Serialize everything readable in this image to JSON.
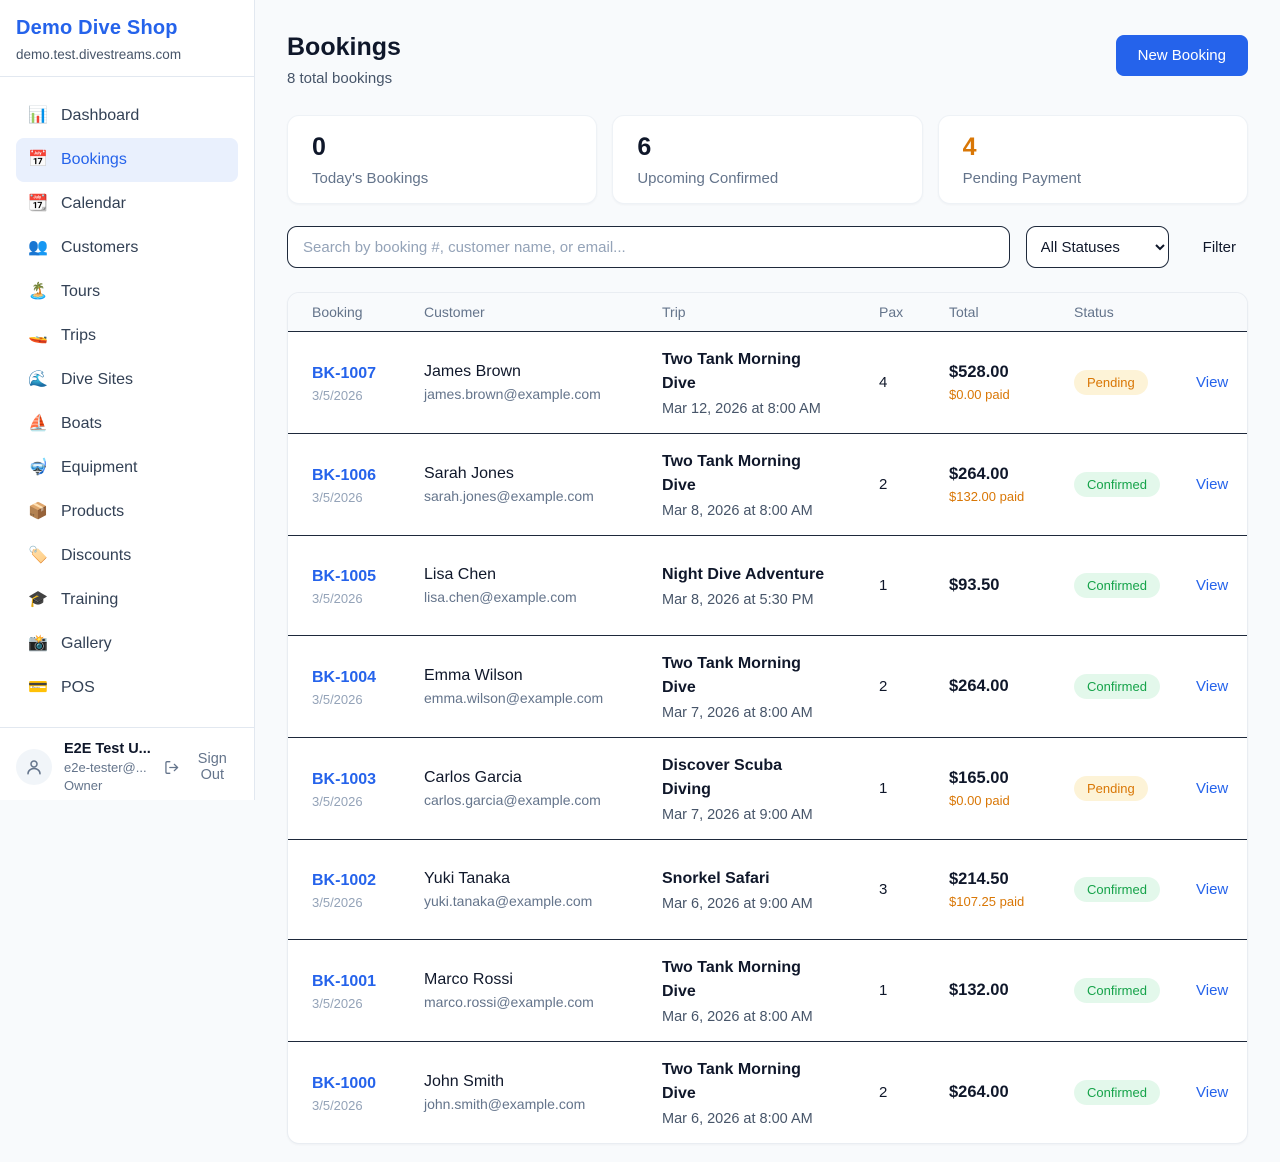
{
  "sidebar": {
    "brand": {
      "name": "Demo Dive Shop",
      "domain": "demo.test.divestreams.com"
    },
    "nav": [
      {
        "label": "Dashboard",
        "icon": "bar-chart-icon",
        "glyph": "📊",
        "active": false
      },
      {
        "label": "Bookings",
        "icon": "calendar-icon",
        "glyph": "📅",
        "active": true
      },
      {
        "label": "Calendar",
        "icon": "tear-off-calendar-icon",
        "glyph": "📆",
        "active": false
      },
      {
        "label": "Customers",
        "icon": "people-icon",
        "glyph": "👥",
        "active": false
      },
      {
        "label": "Tours",
        "icon": "desert-island-icon",
        "glyph": "🏝️",
        "active": false
      },
      {
        "label": "Trips",
        "icon": "speedboat-icon",
        "glyph": "🚤",
        "active": false
      },
      {
        "label": "Dive Sites",
        "icon": "wave-icon",
        "glyph": "🌊",
        "active": false
      },
      {
        "label": "Boats",
        "icon": "sailboat-icon",
        "glyph": "⛵",
        "active": false
      },
      {
        "label": "Equipment",
        "icon": "diving-mask-icon",
        "glyph": "🤿",
        "active": false
      },
      {
        "label": "Products",
        "icon": "package-icon",
        "glyph": "📦",
        "active": false
      },
      {
        "label": "Discounts",
        "icon": "tag-icon",
        "glyph": "🏷️",
        "active": false
      },
      {
        "label": "Training",
        "icon": "graduation-cap-icon",
        "glyph": "🎓",
        "active": false
      },
      {
        "label": "Gallery",
        "icon": "camera-flash-icon",
        "glyph": "📸",
        "active": false
      },
      {
        "label": "POS",
        "icon": "credit-card-icon",
        "glyph": "💳",
        "active": false
      }
    ],
    "user": {
      "name": "E2E Test U...",
      "email": "e2e-tester@...",
      "role": "Owner",
      "sign_out_label": "Sign Out"
    }
  },
  "header": {
    "title": "Bookings",
    "subtitle": "8 total bookings",
    "new_booking_label": "New Booking"
  },
  "stats": [
    {
      "value": "0",
      "label": "Today's Bookings",
      "value_color": "#0f172a"
    },
    {
      "value": "6",
      "label": "Upcoming Confirmed",
      "value_color": "#0f172a"
    },
    {
      "value": "4",
      "label": "Pending Payment",
      "value_color": "#d97706"
    }
  ],
  "controls": {
    "search_placeholder": "Search by booking #, customer name, or email...",
    "status_filter_value": "All Statuses",
    "filter_label": "Filter"
  },
  "table": {
    "columns": [
      "Booking",
      "Customer",
      "Trip",
      "Pax",
      "Total",
      "Status"
    ],
    "view_label": "View",
    "status_styles": {
      "Pending": {
        "bg": "#fdf3d7",
        "text": "#d97706"
      },
      "Confirmed": {
        "bg": "#e3f8eb",
        "text": "#16a34a"
      }
    },
    "rows": [
      {
        "id": "BK-1007",
        "date": "3/5/2026",
        "customer": "James Brown",
        "email": "james.brown@example.com",
        "trip": "Two Tank Morning Dive",
        "trip_datetime": "Mar 12, 2026 at 8:00 AM",
        "pax": "4",
        "total": "$528.00",
        "paid": "$0.00 paid",
        "status": "Pending"
      },
      {
        "id": "BK-1006",
        "date": "3/5/2026",
        "customer": "Sarah Jones",
        "email": "sarah.jones@example.com",
        "trip": "Two Tank Morning Dive",
        "trip_datetime": "Mar 8, 2026 at 8:00 AM",
        "pax": "2",
        "total": "$264.00",
        "paid": "$132.00 paid",
        "status": "Confirmed"
      },
      {
        "id": "BK-1005",
        "date": "3/5/2026",
        "customer": "Lisa Chen",
        "email": "lisa.chen@example.com",
        "trip": "Night Dive Adventure",
        "trip_datetime": "Mar 8, 2026 at 5:30 PM",
        "pax": "1",
        "total": "$93.50",
        "paid": null,
        "status": "Confirmed"
      },
      {
        "id": "BK-1004",
        "date": "3/5/2026",
        "customer": "Emma Wilson",
        "email": "emma.wilson@example.com",
        "trip": "Two Tank Morning Dive",
        "trip_datetime": "Mar 7, 2026 at 8:00 AM",
        "pax": "2",
        "total": "$264.00",
        "paid": null,
        "status": "Confirmed"
      },
      {
        "id": "BK-1003",
        "date": "3/5/2026",
        "customer": "Carlos Garcia",
        "email": "carlos.garcia@example.com",
        "trip": "Discover Scuba Diving",
        "trip_datetime": "Mar 7, 2026 at 9:00 AM",
        "pax": "1",
        "total": "$165.00",
        "paid": "$0.00 paid",
        "status": "Pending"
      },
      {
        "id": "BK-1002",
        "date": "3/5/2026",
        "customer": "Yuki Tanaka",
        "email": "yuki.tanaka@example.com",
        "trip": "Snorkel Safari",
        "trip_datetime": "Mar 6, 2026 at 9:00 AM",
        "pax": "3",
        "total": "$214.50",
        "paid": "$107.25 paid",
        "status": "Confirmed"
      },
      {
        "id": "BK-1001",
        "date": "3/5/2026",
        "customer": "Marco Rossi",
        "email": "marco.rossi@example.com",
        "trip": "Two Tank Morning Dive",
        "trip_datetime": "Mar 6, 2026 at 8:00 AM",
        "pax": "1",
        "total": "$132.00",
        "paid": null,
        "status": "Confirmed"
      },
      {
        "id": "BK-1000",
        "date": "3/5/2026",
        "customer": "John Smith",
        "email": "john.smith@example.com",
        "trip": "Two Tank Morning Dive",
        "trip_datetime": "Mar 6, 2026 at 8:00 AM",
        "pax": "2",
        "total": "$264.00",
        "paid": null,
        "status": "Confirmed"
      }
    ]
  },
  "colors": {
    "accent": "#2563eb",
    "page_bg": "#f8fafc",
    "warning": "#d97706",
    "success": "#16a34a"
  }
}
